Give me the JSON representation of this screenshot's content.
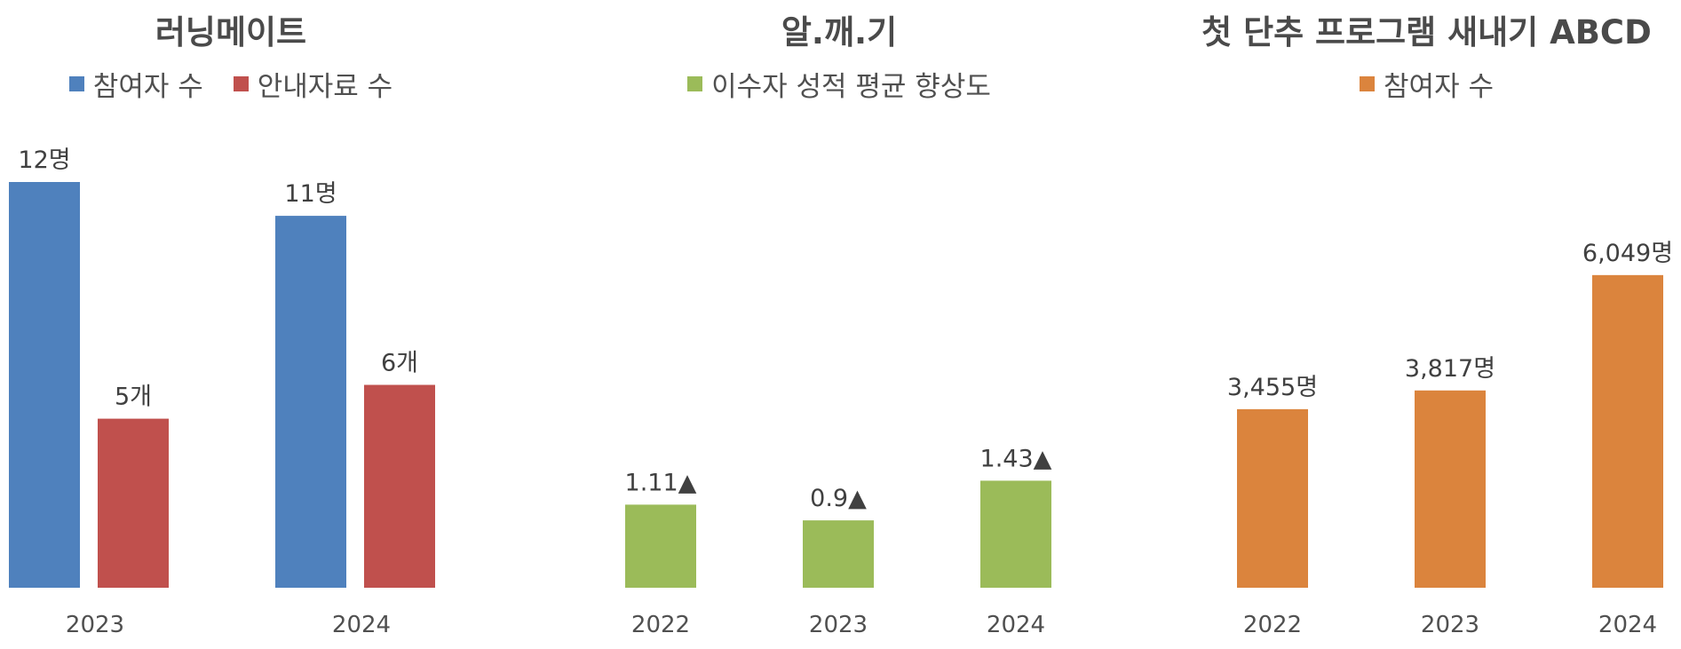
{
  "chart_data": [
    {
      "type": "bar",
      "title": "러닝메이트",
      "categories": [
        "2023",
        "2024"
      ],
      "series": [
        {
          "name": "참여자 수",
          "values": [
            12,
            11
          ],
          "labels": [
            "12명",
            "11명"
          ],
          "color": "#4F81BD"
        },
        {
          "name": "안내자료 수",
          "values": [
            5,
            6
          ],
          "labels": [
            "5개",
            "6개"
          ],
          "color": "#C0504D"
        }
      ],
      "ylim": [
        0,
        12
      ],
      "grid": false,
      "legend": "top-center"
    },
    {
      "type": "bar",
      "title": "알.깨.기",
      "categories": [
        "2022",
        "2023",
        "2024"
      ],
      "series": [
        {
          "name": "이수자 성적 평균 향상도",
          "values": [
            1.11,
            0.9,
            1.43
          ],
          "labels": [
            "1.11▲",
            "0.9▲",
            "1.43▲"
          ],
          "color": "#9BBB59"
        }
      ],
      "ylim": [
        0,
        5.42
      ],
      "grid": false,
      "legend": "top-center"
    },
    {
      "type": "bar",
      "title": "첫 단추 프로그램 새내기 ABCD",
      "categories": [
        "2022",
        "2023",
        "2024"
      ],
      "series": [
        {
          "name": "참여자 수",
          "values": [
            3455,
            3817,
            6049
          ],
          "labels": [
            "3,455명",
            "3,817명",
            "6,049명"
          ],
          "color": "#DB843D"
        }
      ],
      "ylim": [
        0,
        7850
      ],
      "grid": false,
      "legend": "top-center"
    }
  ]
}
